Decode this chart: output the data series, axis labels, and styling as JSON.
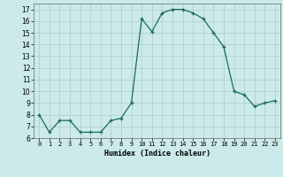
{
  "x": [
    0,
    1,
    2,
    3,
    4,
    5,
    6,
    7,
    8,
    9,
    10,
    11,
    12,
    13,
    14,
    15,
    16,
    17,
    18,
    19,
    20,
    21,
    22,
    23
  ],
  "y": [
    8,
    6.5,
    7.5,
    7.5,
    6.5,
    6.5,
    6.5,
    7.5,
    7.7,
    9,
    16.2,
    15.1,
    16.7,
    17,
    17,
    16.7,
    16.2,
    15,
    13.8,
    10,
    9.7,
    8.7,
    9,
    9.2
  ],
  "xlabel": "Humidex (Indice chaleur)",
  "line_color": "#1a6b5a",
  "marker": "+",
  "marker_size": 3,
  "bg_color": "#cceaea",
  "grid_color": "#aacccc",
  "ylim": [
    6,
    17.5
  ],
  "xlim": [
    -0.5,
    23.5
  ],
  "yticks": [
    6,
    7,
    8,
    9,
    10,
    11,
    12,
    13,
    14,
    15,
    16,
    17
  ],
  "xticks": [
    0,
    1,
    2,
    3,
    4,
    5,
    6,
    7,
    8,
    9,
    10,
    11,
    12,
    13,
    14,
    15,
    16,
    17,
    18,
    19,
    20,
    21,
    22,
    23
  ]
}
